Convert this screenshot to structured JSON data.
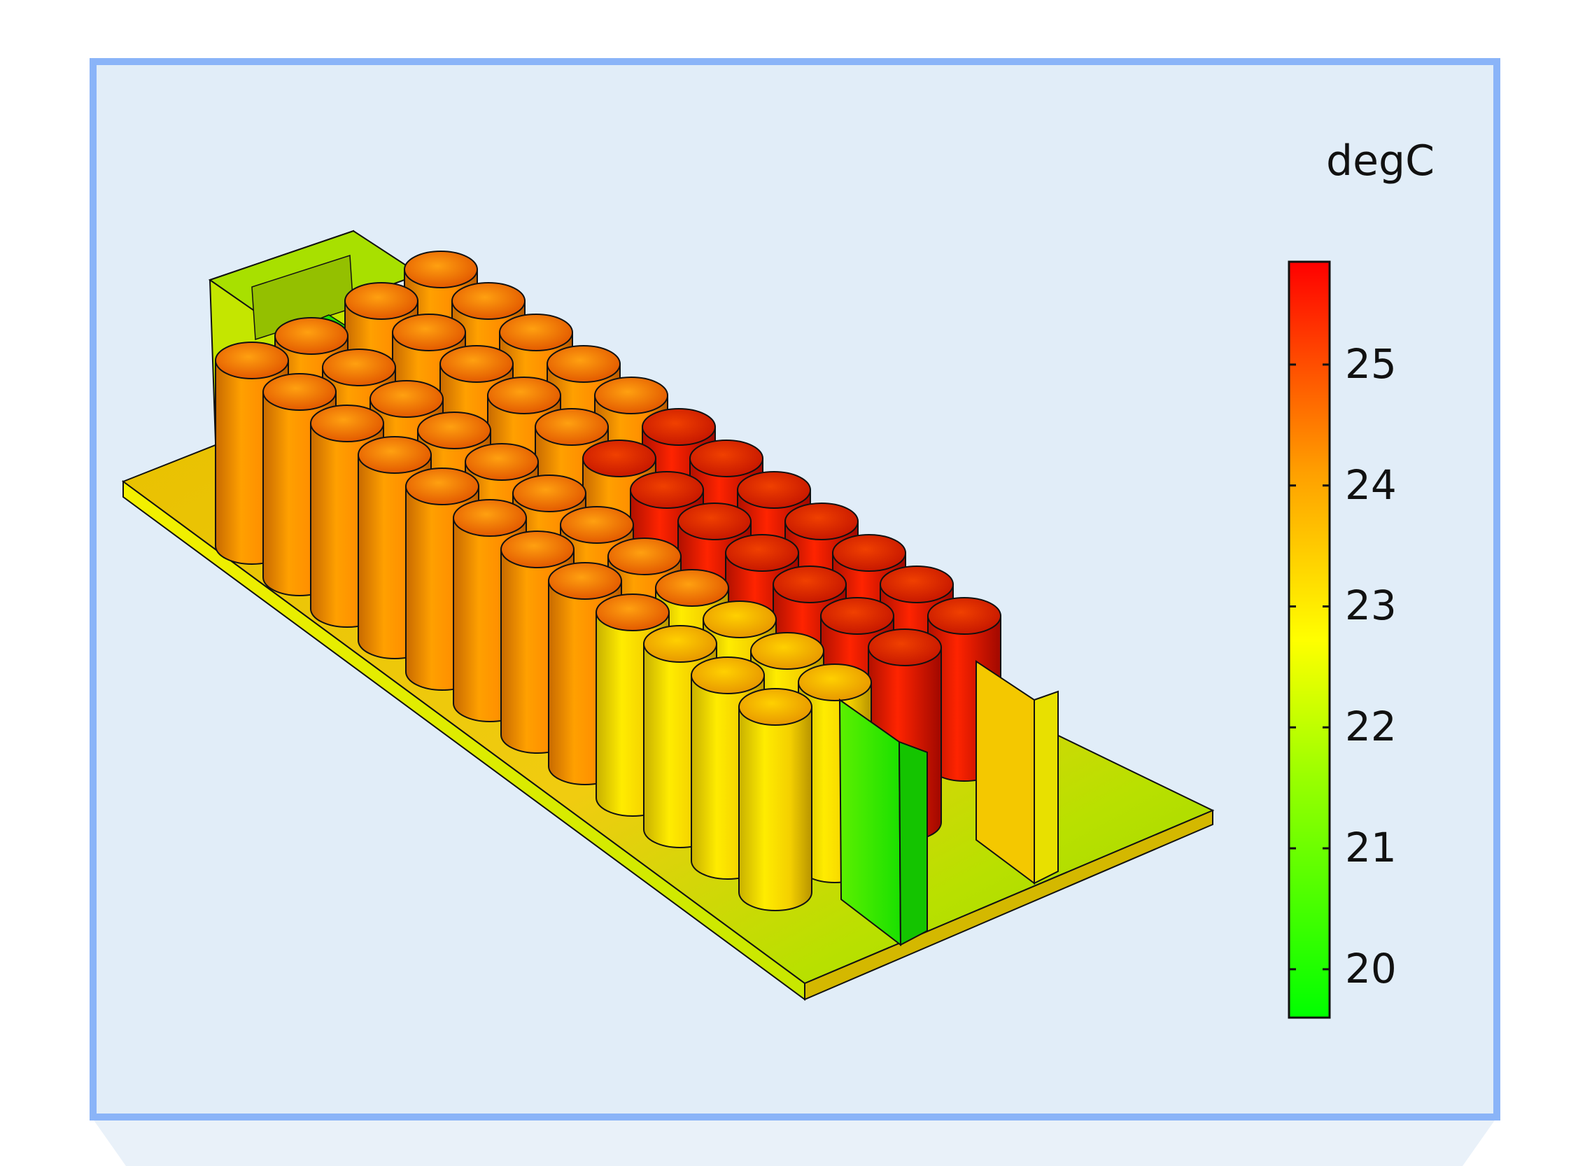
{
  "plot": {
    "colors": {
      "frame_border": "#8ab4f8",
      "frame_background": "#e1edf8",
      "shadow": "#e9f1f9"
    }
  },
  "legend": {
    "unit": "degC",
    "min_value": 19.6,
    "max_value": 25.85,
    "ticks": [
      "20",
      "21",
      "22",
      "23",
      "24",
      "25"
    ],
    "tick_values": [
      20,
      21,
      22,
      23,
      24,
      25
    ],
    "colormap_stops": [
      "#00ff00",
      "#7dff00",
      "#ffff00",
      "#ff9a00",
      "#ff0000"
    ]
  },
  "model": {
    "battery_rows": 4,
    "cells_per_row": 12,
    "description_colors": {
      "cool": "#22e000",
      "mid": "#f2e200",
      "warm": "#ff9a00",
      "hot": "#e81800"
    }
  }
}
